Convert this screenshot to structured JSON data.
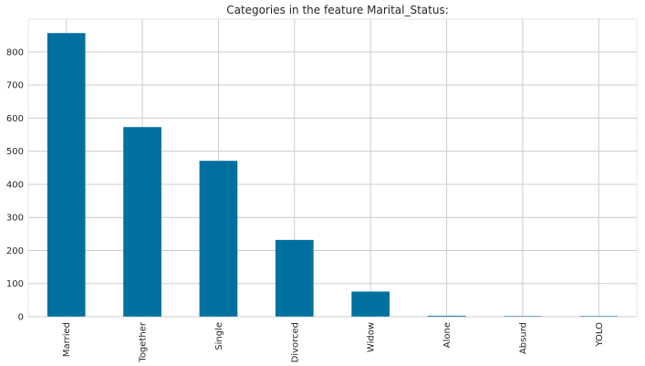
{
  "chart_data": {
    "type": "bar",
    "title": "Categories in the feature Marital_Status:",
    "xlabel": "",
    "ylabel": "",
    "categories": [
      "Married",
      "Together",
      "Single",
      "Divorced",
      "Widow",
      "Alone",
      "Absurd",
      "YOLO"
    ],
    "values": [
      857,
      573,
      471,
      232,
      76,
      3,
      2,
      2
    ],
    "ylim": [
      0,
      899
    ],
    "yticks": [
      0,
      100,
      200,
      300,
      400,
      500,
      600,
      700,
      800
    ],
    "grid": true,
    "bar_color": "#0070a0"
  }
}
